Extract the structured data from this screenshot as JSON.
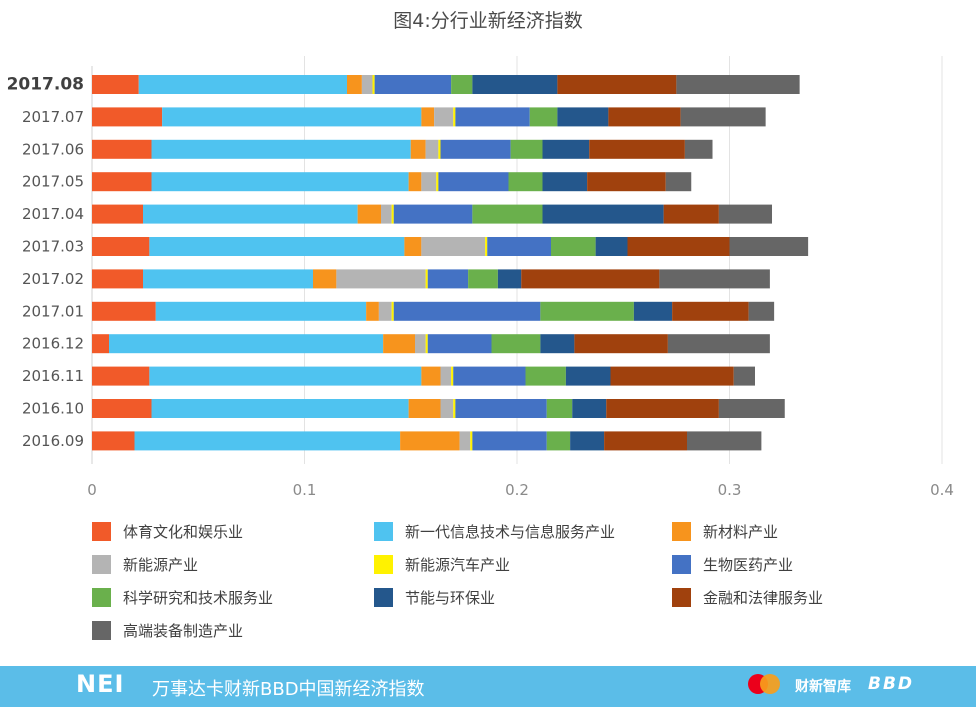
{
  "chart_data": {
    "type": "bar",
    "orientation": "horizontal",
    "stacked": true,
    "title": "图4:分行业新经济指数",
    "categories": [
      "2017.08",
      "2017.07",
      "2017.06",
      "2017.05",
      "2017.04",
      "2017.03",
      "2017.02",
      "2017.01",
      "2016.12",
      "2016.11",
      "2016.10",
      "2016.09"
    ],
    "x_ticks": [
      "0",
      "0.1",
      "0.2",
      "0.3",
      "0.4"
    ],
    "xlim": [
      0,
      0.4
    ],
    "grid": "vertical",
    "legend_position": "bottom",
    "series": [
      {
        "name": "体育文化和娱乐业",
        "color": "#f15a29",
        "values": [
          0.022,
          0.033,
          0.028,
          0.028,
          0.024,
          0.027,
          0.024,
          0.03,
          0.008,
          0.027,
          0.028,
          0.02
        ]
      },
      {
        "name": "新一代信息技术与信息服务产业",
        "color": "#4fc3f0",
        "values": [
          0.098,
          0.122,
          0.122,
          0.121,
          0.101,
          0.12,
          0.08,
          0.099,
          0.129,
          0.128,
          0.121,
          0.125
        ]
      },
      {
        "name": "新材料产业",
        "color": "#f7941d",
        "values": [
          0.007,
          0.006,
          0.007,
          0.006,
          0.011,
          0.008,
          0.011,
          0.006,
          0.015,
          0.009,
          0.015,
          0.028
        ]
      },
      {
        "name": "新能源产业",
        "color": "#b4b4b4",
        "values": [
          0.005,
          0.009,
          0.006,
          0.007,
          0.005,
          0.03,
          0.042,
          0.006,
          0.005,
          0.005,
          0.006,
          0.005
        ]
      },
      {
        "name": "新能源汽车产业",
        "color": "#fff200",
        "values": [
          0.001,
          0.001,
          0.001,
          0.001,
          0.001,
          0.001,
          0.001,
          0.001,
          0.001,
          0.001,
          0.001,
          0.001
        ]
      },
      {
        "name": "生物医药产业",
        "color": "#4472c4",
        "values": [
          0.036,
          0.035,
          0.033,
          0.033,
          0.037,
          0.03,
          0.019,
          0.069,
          0.03,
          0.034,
          0.043,
          0.035
        ]
      },
      {
        "name": "科学研究和技术服务业",
        "color": "#6ab04c",
        "values": [
          0.01,
          0.013,
          0.015,
          0.016,
          0.033,
          0.021,
          0.014,
          0.044,
          0.023,
          0.019,
          0.012,
          0.011
        ]
      },
      {
        "name": "节能与环保业",
        "color": "#24578c",
        "values": [
          0.04,
          0.024,
          0.022,
          0.021,
          0.057,
          0.015,
          0.011,
          0.018,
          0.016,
          0.021,
          0.016,
          0.016
        ]
      },
      {
        "name": "金融和法律服务业",
        "color": "#a0410d",
        "values": [
          0.056,
          0.034,
          0.045,
          0.037,
          0.026,
          0.048,
          0.065,
          0.036,
          0.044,
          0.058,
          0.053,
          0.039
        ]
      },
      {
        "name": "高端装备制造产业",
        "color": "#666666",
        "values": [
          0.058,
          0.04,
          0.013,
          0.012,
          0.025,
          0.037,
          0.052,
          0.012,
          0.048,
          0.01,
          0.031,
          0.035
        ]
      }
    ]
  },
  "footer": {
    "brand": "NEI",
    "text": "万事达卡财新BBD中国新经济指数",
    "logo_caixin": "财新智库",
    "logo_bbd": "BBD"
  }
}
